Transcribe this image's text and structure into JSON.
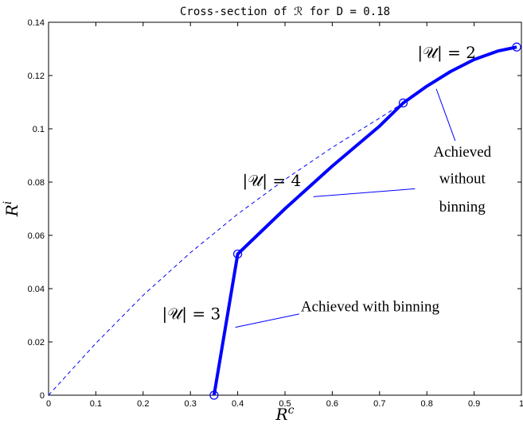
{
  "chart_data": {
    "type": "line",
    "title": "Cross-section of ℛ for D = 0.18",
    "xlabel": "R^c",
    "ylabel": "R^i",
    "xlim": [
      0,
      1
    ],
    "ylim": [
      0,
      0.14
    ],
    "xticks": [
      "0",
      "0.1",
      "0.2",
      "0.3",
      "0.4",
      "0.5",
      "0.6",
      "0.7",
      "0.8",
      "0.9",
      "1"
    ],
    "yticks": [
      "0",
      "0.02",
      "0.04",
      "0.06",
      "0.08",
      "0.1",
      "0.12",
      "0.14"
    ],
    "grid": false,
    "colors": {
      "line": "#0000ff",
      "axis": "#000000"
    },
    "series": [
      {
        "style": "dashed",
        "x": [
          0,
          0.1,
          0.2,
          0.3,
          0.4,
          0.5,
          0.6,
          0.7,
          0.75
        ],
        "y": [
          0,
          0.0195,
          0.0375,
          0.0535,
          0.068,
          0.081,
          0.093,
          0.104,
          0.1097
        ]
      },
      {
        "style": "solid-thick",
        "x": [
          0.35,
          0.4,
          0.5,
          0.6,
          0.7,
          0.75,
          0.8,
          0.85,
          0.9,
          0.95,
          0.99
        ],
        "y": [
          0,
          0.053,
          0.07,
          0.086,
          0.101,
          0.1097,
          0.116,
          0.1215,
          0.126,
          0.1292,
          0.1307
        ]
      }
    ],
    "markers": [
      {
        "x": 0.35,
        "y": 0
      },
      {
        "x": 0.4,
        "y": 0.053
      },
      {
        "x": 0.75,
        "y": 0.1097
      },
      {
        "x": 0.99,
        "y": 0.1307
      }
    ],
    "annotations": [
      {
        "text": "|𝒰| = 2",
        "x": 0.78,
        "y": 0.1265
      },
      {
        "text": "|𝒰| = 4",
        "x": 0.41,
        "y": 0.0785
      },
      {
        "text": "|𝒰| = 3",
        "x": 0.24,
        "y": 0.0285
      },
      {
        "text": "Achieved",
        "x": 0.875,
        "y": 0.0895
      },
      {
        "text": "without",
        "x": 0.875,
        "y": 0.0795
      },
      {
        "text": "binning",
        "x": 0.875,
        "y": 0.069
      },
      {
        "text": "Achieved with binning",
        "x": 0.68,
        "y": 0.0315
      }
    ],
    "pointers": [
      {
        "x1": 0.86,
        "y1": 0.0955,
        "x2": 0.82,
        "y2": 0.115
      },
      {
        "x1": 0.775,
        "y1": 0.0775,
        "x2": 0.56,
        "y2": 0.0745
      },
      {
        "x1": 0.53,
        "y1": 0.0305,
        "x2": 0.395,
        "y2": 0.0255
      }
    ]
  }
}
